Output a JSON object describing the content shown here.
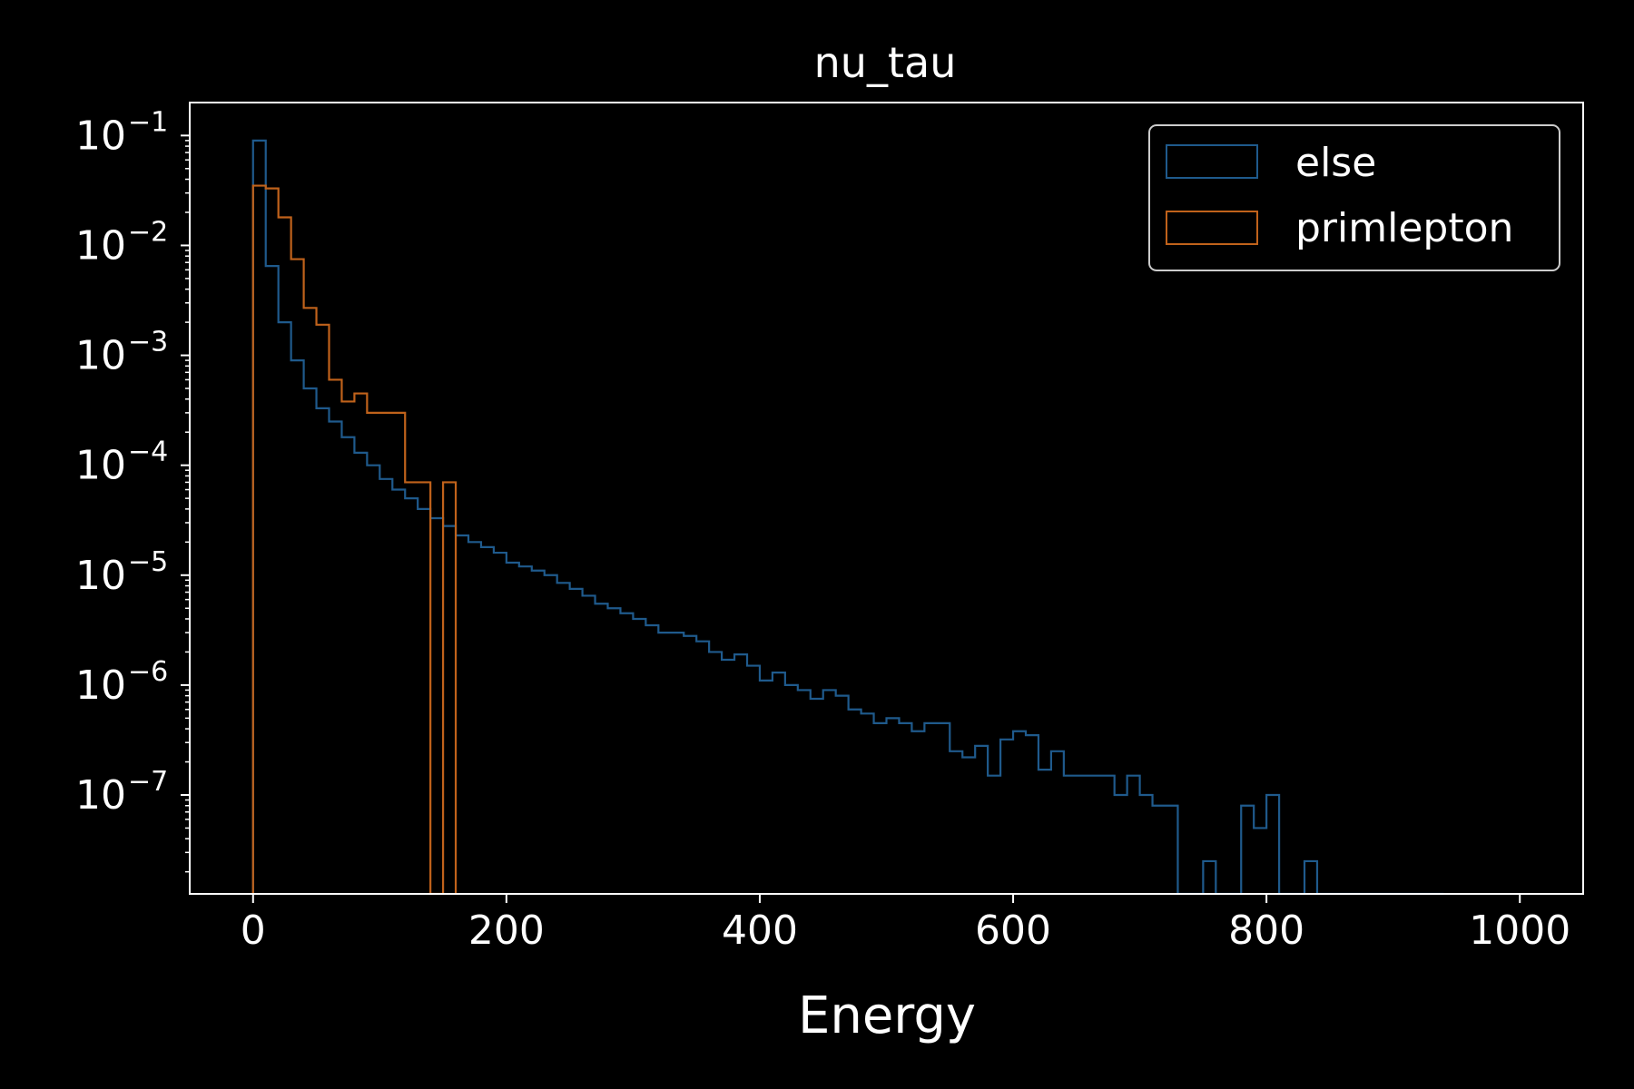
{
  "chart_data": {
    "type": "histogram",
    "title": "nu_tau",
    "xlabel": "Energy",
    "ylabel": "",
    "xlim": [
      -50,
      1050
    ],
    "ylim_log10": [
      -7.9,
      -0.7
    ],
    "yscale": "log",
    "bin_edges_start": 0,
    "bin_width": 10,
    "xticks": [
      0,
      200,
      400,
      600,
      800,
      1000
    ],
    "yticks": [
      {
        "base": "10",
        "exp": "−1",
        "value": 0.1
      },
      {
        "base": "10",
        "exp": "−2",
        "value": 0.01
      },
      {
        "base": "10",
        "exp": "−3",
        "value": 0.001
      },
      {
        "base": "10",
        "exp": "−4",
        "value": 0.0001
      },
      {
        "base": "10",
        "exp": "−5",
        "value": 1e-05
      },
      {
        "base": "10",
        "exp": "−6",
        "value": 1e-06
      },
      {
        "base": "10",
        "exp": "−7",
        "value": 1e-07
      }
    ],
    "legend_position": "top-right",
    "series": [
      {
        "name": "else",
        "color": "#1f5a8c",
        "values": [
          0.09,
          0.0065,
          0.002,
          0.0009,
          0.0005,
          0.00033,
          0.00025,
          0.00018,
          0.00013,
          0.0001,
          7.5e-05,
          6e-05,
          5e-05,
          4e-05,
          3.3e-05,
          2.8e-05,
          2.3e-05,
          2e-05,
          1.8e-05,
          1.6e-05,
          1.3e-05,
          1.2e-05,
          1.1e-05,
          1e-05,
          8.5e-06,
          7.5e-06,
          6.5e-06,
          5.5e-06,
          5e-06,
          4.5e-06,
          4e-06,
          3.5e-06,
          3e-06,
          3e-06,
          2.8e-06,
          2.5e-06,
          2e-06,
          1.7e-06,
          1.9e-06,
          1.5e-06,
          1.1e-06,
          1.3e-06,
          1e-06,
          9e-07,
          7.5e-07,
          9e-07,
          8e-07,
          6e-07,
          5.5e-07,
          4.5e-07,
          5e-07,
          4.5e-07,
          3.8e-07,
          4.5e-07,
          4.5e-07,
          2.5e-07,
          2.2e-07,
          2.8e-07,
          1.5e-07,
          3.2e-07,
          3.8e-07,
          3.5e-07,
          1.7e-07,
          2.5e-07,
          1.5e-07,
          1.5e-07,
          1.5e-07,
          1.5e-07,
          1e-07,
          1.5e-07,
          1e-07,
          8e-08,
          8e-08,
          1e-08,
          1e-08,
          1e-08,
          1e-08,
          1e-08,
          8e-08,
          5e-08,
          1e-07,
          1e-08,
          1e-08,
          1e-08,
          1e-08,
          1e-08,
          1e-08,
          1e-08,
          1e-08,
          1e-08,
          1e-08,
          1e-08,
          1e-08,
          1e-08
        ],
        "nonzero_mask_tail": [
          [
            680,
            690
          ],
          [
            750,
            760
          ],
          [
            780,
            790
          ],
          [
            830,
            840
          ]
        ]
      },
      {
        "name": "primlepton",
        "color": "#c0621b",
        "values": [
          0.035,
          0.033,
          0.018,
          0.0075,
          0.0027,
          0.0019,
          0.0006,
          0.00038,
          0.00045,
          0.0003,
          0.0003,
          0.0003,
          7e-05,
          7e-05,
          0,
          7e-05
        ]
      }
    ]
  }
}
